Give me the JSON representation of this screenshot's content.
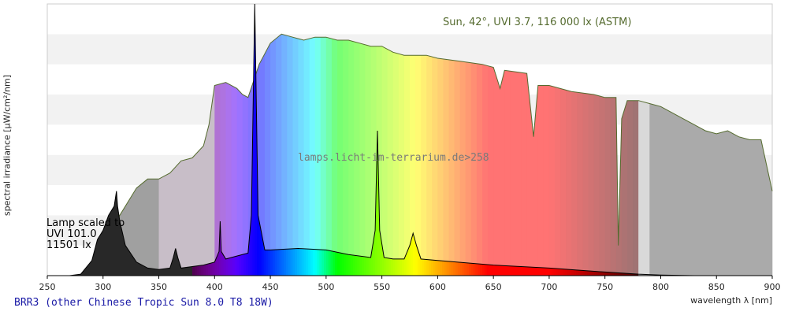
{
  "chart_data": {
    "type": "area",
    "title": "Sun, 42°, UVI 3.7, 116 000 lx (ASTM)",
    "xlabel": "wavelength λ [nm]",
    "ylabel": "spectral irradiance [µW/cm²/nm]",
    "xlim": [
      250,
      900
    ],
    "x_ticks": [
      250,
      300,
      350,
      400,
      450,
      500,
      550,
      600,
      650,
      700,
      750,
      800,
      850,
      900
    ],
    "ylim": [
      0,
      9
    ],
    "grid": "horizontal bands",
    "watermark": "lamps.licht-im-terrarium.de>258",
    "lamp_label": [
      "Lamp scaled to",
      "UVI 101.0",
      "11501 lx"
    ],
    "series": [
      {
        "name": "Sun, 42°, UVI 3.7, 116 000 lx (ASTM)",
        "color": "#556b2f",
        "x": [
          290,
          300,
          310,
          320,
          330,
          340,
          350,
          360,
          370,
          380,
          390,
          395,
          400,
          410,
          420,
          425,
          430,
          440,
          450,
          460,
          470,
          480,
          490,
          500,
          510,
          520,
          530,
          540,
          550,
          560,
          570,
          580,
          590,
          600,
          620,
          640,
          650,
          656,
          660,
          680,
          686,
          690,
          700,
          720,
          740,
          750,
          760,
          762,
          765,
          770,
          780,
          790,
          800,
          820,
          840,
          850,
          860,
          870,
          880,
          890,
          900
        ],
        "y": [
          0.1,
          0.9,
          1.7,
          2.3,
          2.9,
          3.2,
          3.2,
          3.4,
          3.8,
          3.9,
          4.3,
          5.0,
          6.3,
          6.4,
          6.2,
          6.0,
          5.9,
          7.0,
          7.7,
          8.0,
          7.9,
          7.8,
          7.9,
          7.9,
          7.8,
          7.8,
          7.7,
          7.6,
          7.6,
          7.4,
          7.3,
          7.3,
          7.3,
          7.2,
          7.1,
          7.0,
          6.9,
          6.2,
          6.8,
          6.7,
          4.6,
          6.3,
          6.3,
          6.1,
          6.0,
          5.9,
          5.9,
          1.0,
          5.2,
          5.8,
          5.8,
          5.7,
          5.6,
          5.2,
          4.8,
          4.7,
          4.8,
          4.6,
          4.5,
          4.5,
          2.8
        ]
      },
      {
        "name": "BRR3 (other Chinese Tropic Sun 8.0 T8 18W)",
        "color": "#000000",
        "x": [
          270,
          280,
          290,
          295,
          300,
          305,
          310,
          312,
          313,
          315,
          320,
          330,
          340,
          350,
          360,
          363,
          365,
          367,
          370,
          380,
          390,
          400,
          404,
          405,
          406,
          410,
          420,
          430,
          433,
          436,
          439,
          445,
          450,
          475,
          500,
          520,
          540,
          544,
          546,
          548,
          552,
          560,
          570,
          575,
          578,
          581,
          585,
          600,
          650,
          700,
          750,
          780,
          800,
          830
        ],
        "y": [
          0.0,
          0.05,
          0.5,
          1.2,
          1.5,
          2.0,
          2.3,
          2.8,
          2.3,
          1.8,
          1.0,
          0.45,
          0.25,
          0.2,
          0.25,
          0.6,
          0.9,
          0.6,
          0.25,
          0.3,
          0.35,
          0.45,
          0.8,
          1.8,
          0.8,
          0.55,
          0.65,
          0.75,
          2.0,
          9.0,
          2.0,
          0.85,
          0.85,
          0.9,
          0.85,
          0.7,
          0.6,
          1.5,
          4.8,
          1.5,
          0.6,
          0.55,
          0.55,
          1.0,
          1.4,
          1.0,
          0.55,
          0.5,
          0.35,
          0.25,
          0.12,
          0.05,
          0.02,
          0.0
        ]
      }
    ]
  },
  "caption": "BRR3 (other Chinese Tropic Sun 8.0 T8 18W)"
}
